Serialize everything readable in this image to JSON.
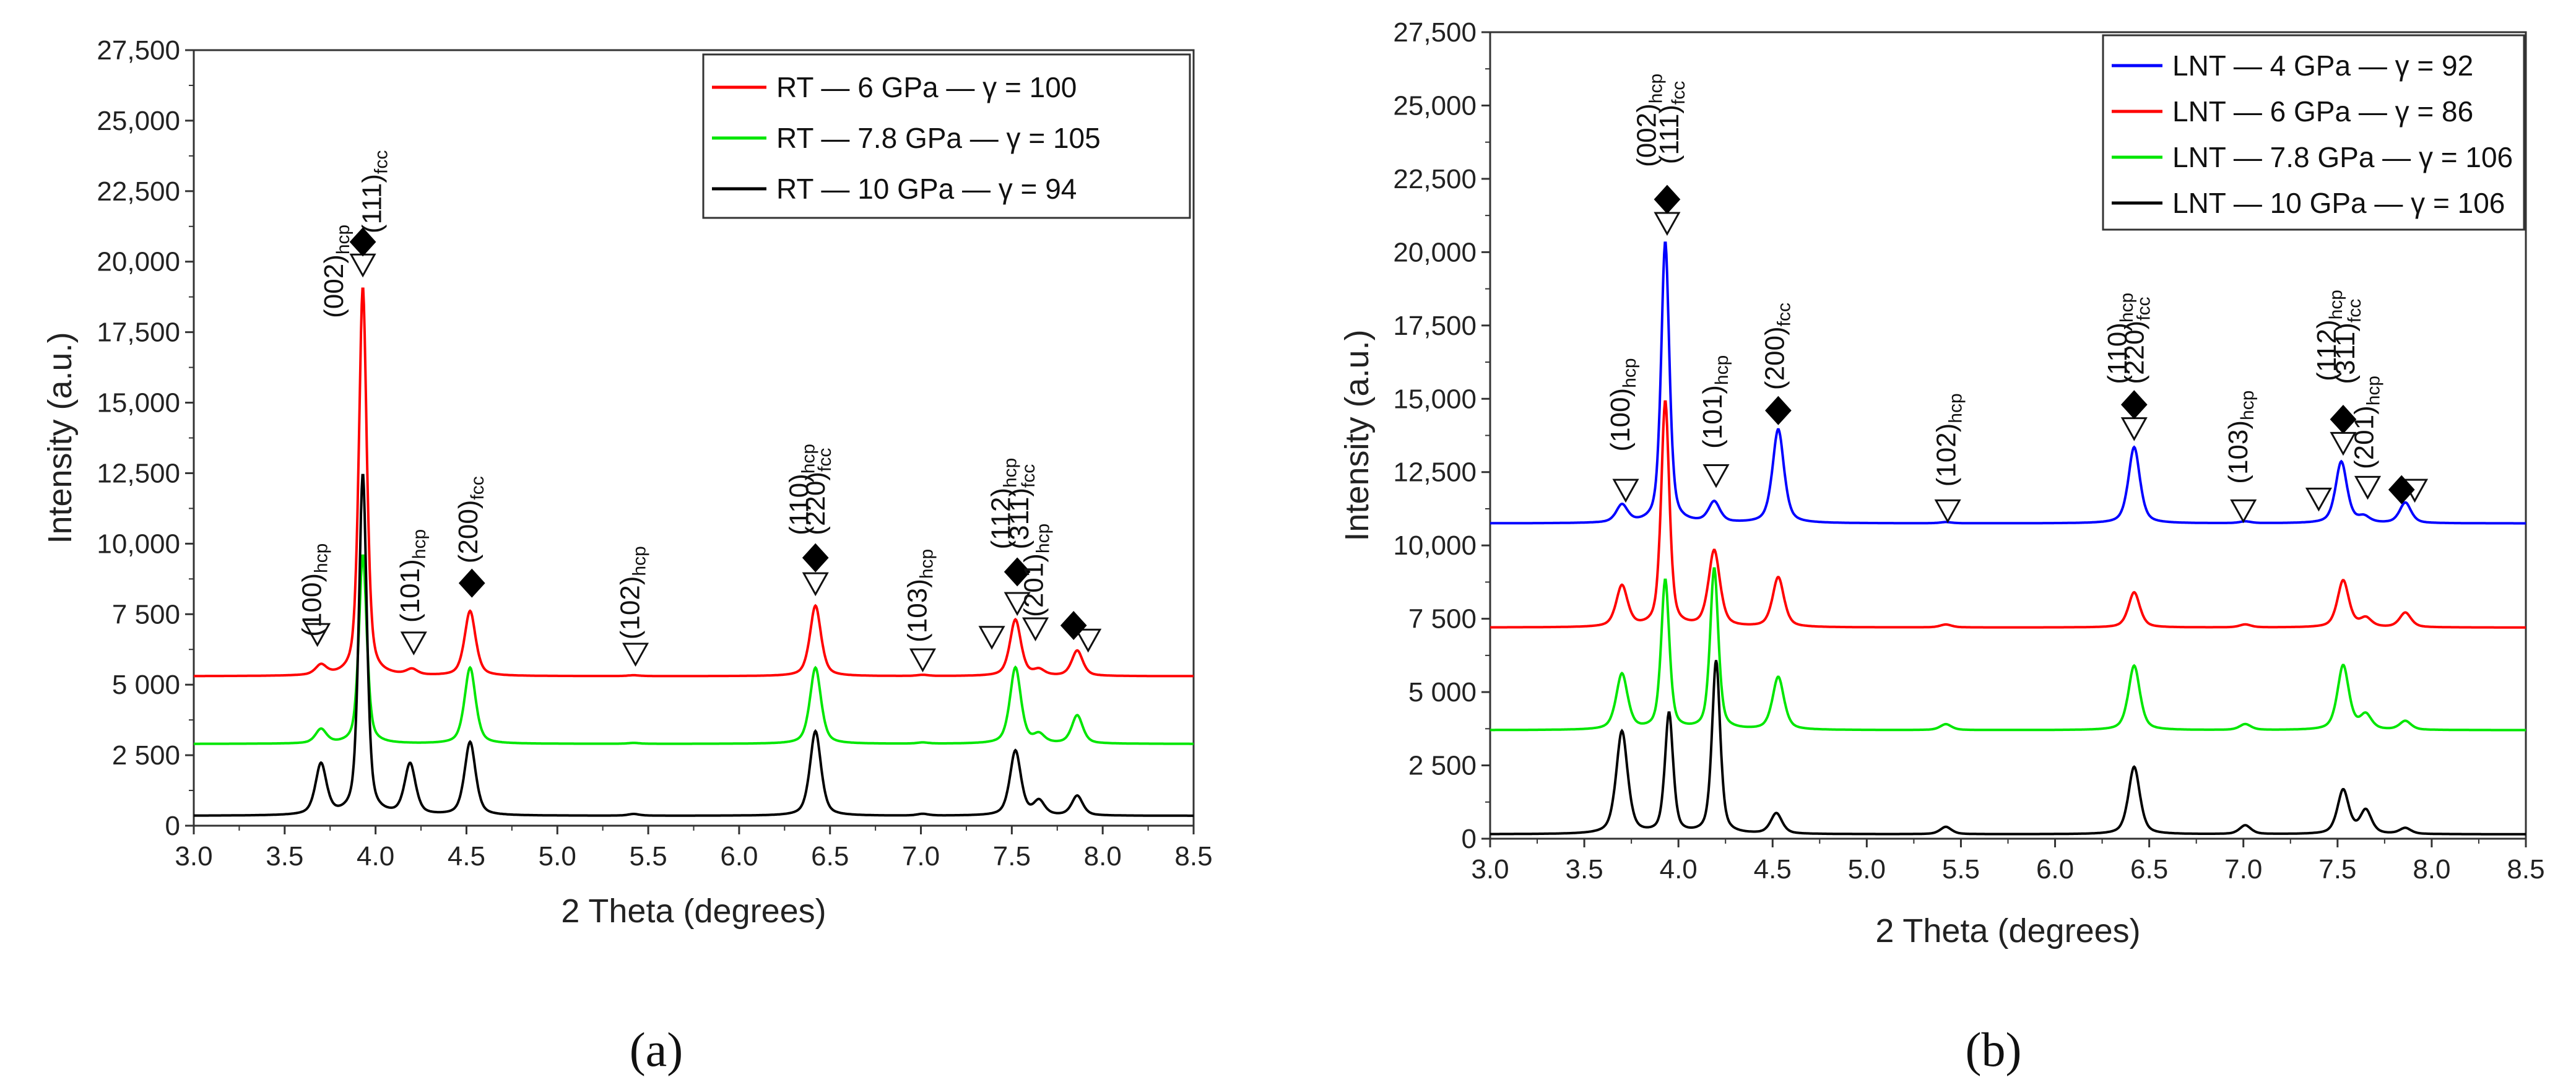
{
  "chart_data": [
    {
      "id": "a",
      "panel_label": "(a)",
      "type": "line",
      "xlabel": "2 Theta (degrees)",
      "ylabel": "Intensity (a.u.)",
      "xlim": [
        3.0,
        8.5
      ],
      "ylim": [
        0,
        27500
      ],
      "x_ticks": [
        "3.0",
        "3.5",
        "4.0",
        "4.5",
        "5.0",
        "5.5",
        "6.0",
        "6.5",
        "7.0",
        "7.5",
        "8.0",
        "8.5"
      ],
      "y_ticks": [
        {
          "v": 0,
          "t": "0"
        },
        {
          "v": 2500,
          "t": "2 500"
        },
        {
          "v": 5000,
          "t": "5 000"
        },
        {
          "v": 7500,
          "t": "7 500"
        },
        {
          "v": 10000,
          "t": "10,000"
        },
        {
          "v": 12500,
          "t": "12,500"
        },
        {
          "v": 15000,
          "t": "15,000"
        },
        {
          "v": 17500,
          "t": "17,500"
        },
        {
          "v": 20000,
          "t": "20,000"
        },
        {
          "v": 22500,
          "t": "22,500"
        },
        {
          "v": 25000,
          "t": "25,000"
        },
        {
          "v": 27500,
          "t": "27,500"
        }
      ],
      "legend_position": "top-right",
      "series": [
        {
          "name": "RT — 6 GPa — γ = 100",
          "color": "#ff0000",
          "baseline": 5300,
          "peaks": [
            [
              3.7,
              350
            ],
            [
              3.93,
              13800
            ],
            [
              4.2,
              200
            ],
            [
              4.52,
              2300
            ],
            [
              5.42,
              30
            ],
            [
              6.42,
              2500
            ],
            [
              7.01,
              40
            ],
            [
              7.52,
              2000
            ],
            [
              7.65,
              200
            ],
            [
              7.86,
              900
            ]
          ]
        },
        {
          "name": "RT — 7.8 GPa — γ = 105",
          "color": "#00e600",
          "baseline": 2900,
          "peaks": [
            [
              3.7,
              500
            ],
            [
              3.93,
              6700
            ],
            [
              4.52,
              2700
            ],
            [
              5.42,
              30
            ],
            [
              6.42,
              2700
            ],
            [
              7.01,
              40
            ],
            [
              7.52,
              2700
            ],
            [
              7.65,
              300
            ],
            [
              7.86,
              1000
            ]
          ]
        },
        {
          "name": "RT — 10 GPa — γ = 94",
          "color": "#000000",
          "baseline": 350,
          "peaks": [
            [
              3.7,
              1800
            ],
            [
              3.93,
              12100
            ],
            [
              4.19,
              1800
            ],
            [
              4.52,
              2600
            ],
            [
              5.42,
              60
            ],
            [
              6.42,
              3000
            ],
            [
              7.01,
              60
            ],
            [
              7.52,
              2300
            ],
            [
              7.65,
              500
            ],
            [
              7.86,
              700
            ]
          ]
        }
      ],
      "annotations": [
        {
          "label": "(100)",
          "sub": "hcp",
          "x": 3.7,
          "y": 6700,
          "tri_x": 3.68,
          "tri_y": 6800
        },
        {
          "label": "(002)",
          "sub": "hcp",
          "x": 3.82,
          "y": 18000
        },
        {
          "label": "(111)",
          "sub": "fcc",
          "x": 4.03,
          "y": 21000,
          "tri_x": 3.93,
          "tri_y": 19900,
          "dia_x": 3.93,
          "dia_y": 20700
        },
        {
          "label": "(101)",
          "sub": "hcp",
          "x": 4.24,
          "y": 7200,
          "tri_x": 4.21,
          "tri_y": 6500
        },
        {
          "label": "(200)",
          "sub": "fcc",
          "x": 4.56,
          "y": 9300,
          "dia_x": 4.53,
          "dia_y": 8600
        },
        {
          "label": "(102)",
          "sub": "hcp",
          "x": 5.45,
          "y": 6600,
          "tri_x": 5.43,
          "tri_y": 6100
        },
        {
          "label": "(110)",
          "sub": "hcp",
          "x": 6.38,
          "y": 10300,
          "tri_x": 6.42,
          "tri_y": 8600,
          "dia_x": 6.42,
          "dia_y": 9500
        },
        {
          "label": "(220)",
          "sub": "fcc",
          "x": 6.47,
          "y": 10300
        },
        {
          "label": "(103)",
          "sub": "hcp",
          "x": 7.03,
          "y": 6500,
          "tri_x": 7.01,
          "tri_y": 5900
        },
        {
          "label": "(112)",
          "sub": "hcp",
          "x": 7.49,
          "y": 9800,
          "tri_x": 7.39,
          "tri_y": 6700,
          "dia_x": 7.53,
          "dia_y": 9000
        },
        {
          "label": "(311)",
          "sub": "fcc",
          "x": 7.59,
          "y": 9800,
          "tri_x": 7.53,
          "tri_y": 7900
        },
        {
          "label": "(201)",
          "sub": "hcp",
          "x": 7.67,
          "y": 7400,
          "tri_x": 7.63,
          "tri_y": 7000
        },
        {
          "dia_x": 7.84,
          "dia_y": 7100,
          "tri_x": 7.92,
          "tri_y": 6600
        }
      ]
    },
    {
      "id": "b",
      "panel_label": "(b)",
      "type": "line",
      "xlabel": "2 Theta (degrees)",
      "ylabel": "Intensity (a.u.)",
      "xlim": [
        3.0,
        8.5
      ],
      "ylim": [
        0,
        27500
      ],
      "x_ticks": [
        "3.0",
        "3.5",
        "4.0",
        "4.5",
        "5.0",
        "5.5",
        "6.0",
        "6.5",
        "7.0",
        "7.5",
        "8.0",
        "8.5"
      ],
      "y_ticks": [
        {
          "v": 0,
          "t": "0"
        },
        {
          "v": 2500,
          "t": "2 500"
        },
        {
          "v": 5000,
          "t": "5 000"
        },
        {
          "v": 7500,
          "t": "7 500"
        },
        {
          "v": 10000,
          "t": "10,000"
        },
        {
          "v": 12500,
          "t": "12,500"
        },
        {
          "v": 15000,
          "t": "15,000"
        },
        {
          "v": 17500,
          "t": "17,500"
        },
        {
          "v": 20000,
          "t": "20,000"
        },
        {
          "v": 22500,
          "t": "22,500"
        },
        {
          "v": 25000,
          "t": "25,000"
        },
        {
          "v": 27500,
          "t": "27,500"
        }
      ],
      "legend_position": "top-right",
      "series": [
        {
          "name": "LNT — 4 GPa — γ = 92",
          "color": "#0000ff",
          "baseline": 10750,
          "peaks": [
            [
              3.7,
              600
            ],
            [
              3.93,
              9600
            ],
            [
              4.19,
              700
            ],
            [
              4.53,
              3200
            ],
            [
              5.42,
              40
            ],
            [
              6.42,
              2600
            ],
            [
              7.01,
              60
            ],
            [
              7.52,
              2100
            ],
            [
              7.64,
              200
            ],
            [
              7.86,
              700
            ]
          ]
        },
        {
          "name": "LNT — 6 GPa — γ = 86",
          "color": "#ff0000",
          "baseline": 7200,
          "peaks": [
            [
              3.7,
              1400
            ],
            [
              3.93,
              7700
            ],
            [
              4.19,
              2600
            ],
            [
              4.53,
              1700
            ],
            [
              5.42,
              100
            ],
            [
              6.42,
              1200
            ],
            [
              7.01,
              100
            ],
            [
              7.53,
              1600
            ],
            [
              7.65,
              300
            ],
            [
              7.86,
              500
            ]
          ]
        },
        {
          "name": "LNT — 7.8 GPa — γ = 106",
          "color": "#00e600",
          "baseline": 3700,
          "peaks": [
            [
              3.7,
              1900
            ],
            [
              3.93,
              5100
            ],
            [
              4.19,
              5500
            ],
            [
              4.53,
              1800
            ],
            [
              5.42,
              200
            ],
            [
              6.42,
              2200
            ],
            [
              7.01,
              200
            ],
            [
              7.53,
              2200
            ],
            [
              7.65,
              500
            ],
            [
              7.86,
              300
            ]
          ]
        },
        {
          "name": "LNT — 10 GPa — γ = 106",
          "color": "#000000",
          "baseline": 150,
          "peaks": [
            [
              3.7,
              3500
            ],
            [
              3.95,
              4100
            ],
            [
              4.2,
              5900
            ],
            [
              4.52,
              700
            ],
            [
              5.42,
              250
            ],
            [
              6.42,
              2300
            ],
            [
              7.01,
              300
            ],
            [
              7.53,
              1500
            ],
            [
              7.65,
              800
            ],
            [
              7.86,
              200
            ]
          ]
        }
      ],
      "annotations": [
        {
          "label": "(100)",
          "sub": "hcp",
          "x": 3.74,
          "y": 13200,
          "tri_x": 3.72,
          "tri_y": 11900
        },
        {
          "label": "(002)",
          "sub": "hcp",
          "x": 3.88,
          "y": 22900
        },
        {
          "label": "(111)",
          "sub": "fcc",
          "x": 4.0,
          "y": 23000,
          "tri_x": 3.94,
          "tri_y": 21000,
          "dia_x": 3.94,
          "dia_y": 21800
        },
        {
          "label": "(101)",
          "sub": "hcp",
          "x": 4.23,
          "y": 13300,
          "tri_x": 4.2,
          "tri_y": 12400
        },
        {
          "label": "(200)",
          "sub": "fcc",
          "x": 4.56,
          "y": 15300,
          "dia_x": 4.53,
          "dia_y": 14600
        },
        {
          "label": "(102)",
          "sub": "hcp",
          "x": 5.47,
          "y": 12000,
          "tri_x": 5.43,
          "tri_y": 11200
        },
        {
          "label": "(110)",
          "sub": "hcp",
          "x": 6.38,
          "y": 15500,
          "tri_x": 6.42,
          "tri_y": 14000,
          "dia_x": 6.42,
          "dia_y": 14800
        },
        {
          "label": "(220)",
          "sub": "fcc",
          "x": 6.47,
          "y": 15500
        },
        {
          "label": "(103)",
          "sub": "hcp",
          "x": 7.02,
          "y": 12100,
          "tri_x": 7.0,
          "tri_y": 11200
        },
        {
          "label": "(112)",
          "sub": "hcp",
          "x": 7.49,
          "y": 15600,
          "tri_x": 7.4,
          "tri_y": 11600,
          "dia_x": 7.53,
          "dia_y": 14300
        },
        {
          "label": "(311)",
          "sub": "fcc",
          "x": 7.59,
          "y": 15500,
          "tri_x": 7.53,
          "tri_y": 13500
        },
        {
          "label": "(201)",
          "sub": "hcp",
          "x": 7.69,
          "y": 12600,
          "tri_x": 7.66,
          "tri_y": 12000
        },
        {
          "dia_x": 7.84,
          "dia_y": 11900,
          "tri_x": 7.91,
          "tri_y": 11900
        }
      ]
    }
  ]
}
